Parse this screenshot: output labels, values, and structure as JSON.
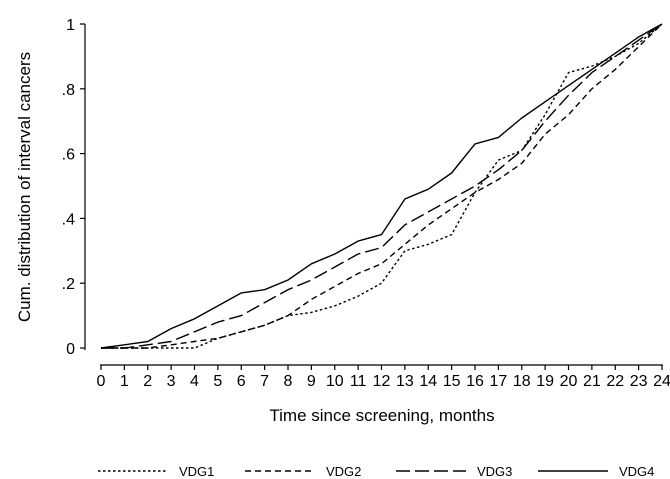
{
  "chart_data": {
    "type": "line",
    "title": "",
    "xlabel": "Time since screening, months",
    "ylabel": "Cum. distribution of interval cancers",
    "xlim": [
      0,
      24
    ],
    "ylim": [
      0,
      1
    ],
    "x_ticks": [
      0,
      1,
      2,
      3,
      4,
      5,
      6,
      7,
      8,
      9,
      10,
      11,
      12,
      13,
      14,
      15,
      16,
      17,
      18,
      19,
      20,
      21,
      22,
      23,
      24
    ],
    "y_ticks": [
      {
        "value": 0,
        "label": "0"
      },
      {
        "value": 0.2,
        "label": ".2"
      },
      {
        "value": 0.4,
        "label": ".4"
      },
      {
        "value": 0.6,
        "label": ".6"
      },
      {
        "value": 0.8,
        "label": ".8"
      },
      {
        "value": 1,
        "label": "1"
      }
    ],
    "grid": false,
    "legend_position": "bottom",
    "x": [
      0,
      1,
      2,
      3,
      4,
      5,
      6,
      7,
      8,
      9,
      10,
      11,
      12,
      13,
      14,
      15,
      16,
      17,
      18,
      19,
      20,
      21,
      22,
      23,
      24
    ],
    "series": [
      {
        "name": "VDG1",
        "line_style": "dotted",
        "values": [
          0,
          0,
          0,
          0,
          0,
          0.03,
          0.05,
          0.07,
          0.1,
          0.11,
          0.13,
          0.16,
          0.2,
          0.3,
          0.32,
          0.35,
          0.48,
          0.58,
          0.61,
          0.72,
          0.85,
          0.87,
          0.9,
          0.94,
          1.0
        ]
      },
      {
        "name": "VDG2",
        "line_style": "short-dash",
        "values": [
          0,
          0,
          0,
          0.01,
          0.02,
          0.03,
          0.05,
          0.07,
          0.1,
          0.15,
          0.19,
          0.23,
          0.26,
          0.32,
          0.38,
          0.43,
          0.48,
          0.52,
          0.57,
          0.66,
          0.72,
          0.8,
          0.86,
          0.93,
          1.0
        ]
      },
      {
        "name": "VDG3",
        "line_style": "long-dash",
        "values": [
          0,
          0,
          0.01,
          0.02,
          0.05,
          0.08,
          0.1,
          0.14,
          0.18,
          0.21,
          0.25,
          0.29,
          0.31,
          0.38,
          0.42,
          0.46,
          0.5,
          0.55,
          0.61,
          0.7,
          0.78,
          0.85,
          0.9,
          0.95,
          1.0
        ]
      },
      {
        "name": "VDG4",
        "line_style": "solid",
        "values": [
          0,
          0.01,
          0.02,
          0.06,
          0.09,
          0.13,
          0.17,
          0.18,
          0.21,
          0.26,
          0.29,
          0.33,
          0.35,
          0.46,
          0.49,
          0.54,
          0.63,
          0.65,
          0.71,
          0.76,
          0.81,
          0.86,
          0.91,
          0.96,
          1.0
        ]
      }
    ]
  }
}
